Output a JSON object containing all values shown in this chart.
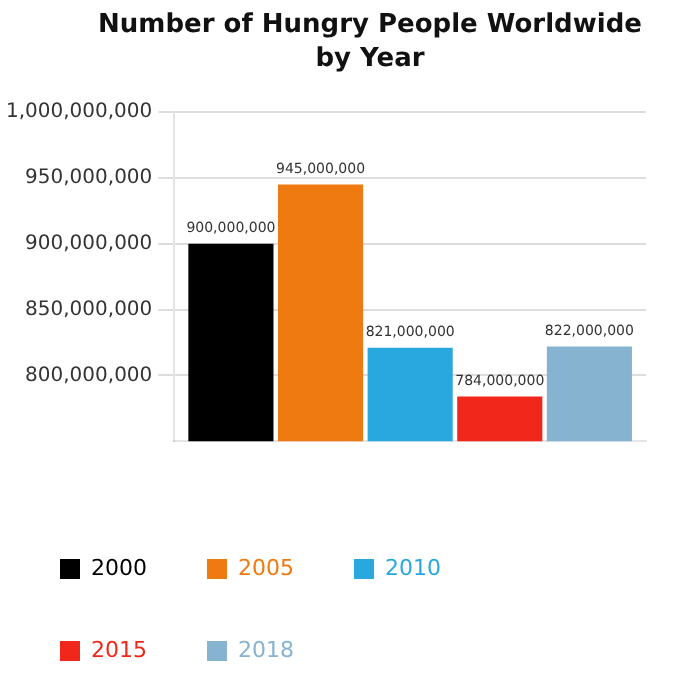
{
  "chart_data": {
    "type": "bar",
    "title": "Number of Hungry People Worldwide by Year",
    "categories": [
      null
    ],
    "series": [
      {
        "name": "2000",
        "color": "#000000",
        "values": [
          900000000
        ],
        "value_labels": [
          "900,000,000"
        ]
      },
      {
        "name": "2005",
        "color": "#f07a12",
        "values": [
          945000000
        ],
        "value_labels": [
          "945,000,000"
        ]
      },
      {
        "name": "2010",
        "color": "#29a8e0",
        "values": [
          821000000
        ],
        "value_labels": [
          "821,000,000"
        ]
      },
      {
        "name": "2015",
        "color": "#f0271a",
        "values": [
          784000000
        ],
        "value_labels": [
          "784,000,000"
        ]
      },
      {
        "name": "2018",
        "color": "#86b4d0",
        "values": [
          822000000
        ],
        "value_labels": [
          "822,000,000"
        ]
      }
    ],
    "ylim": [
      750000000,
      1000000000
    ],
    "yticks": [
      {
        "value": 800000000,
        "label": "800,000,000"
      },
      {
        "value": 850000000,
        "label": "850,000,000"
      },
      {
        "value": 900000000,
        "label": "900,000,000"
      },
      {
        "value": 950000000,
        "label": "950,000,000"
      },
      {
        "value": 1000000000,
        "label": "1,000,000,000"
      }
    ],
    "grid": "y",
    "legend": "bottom"
  }
}
